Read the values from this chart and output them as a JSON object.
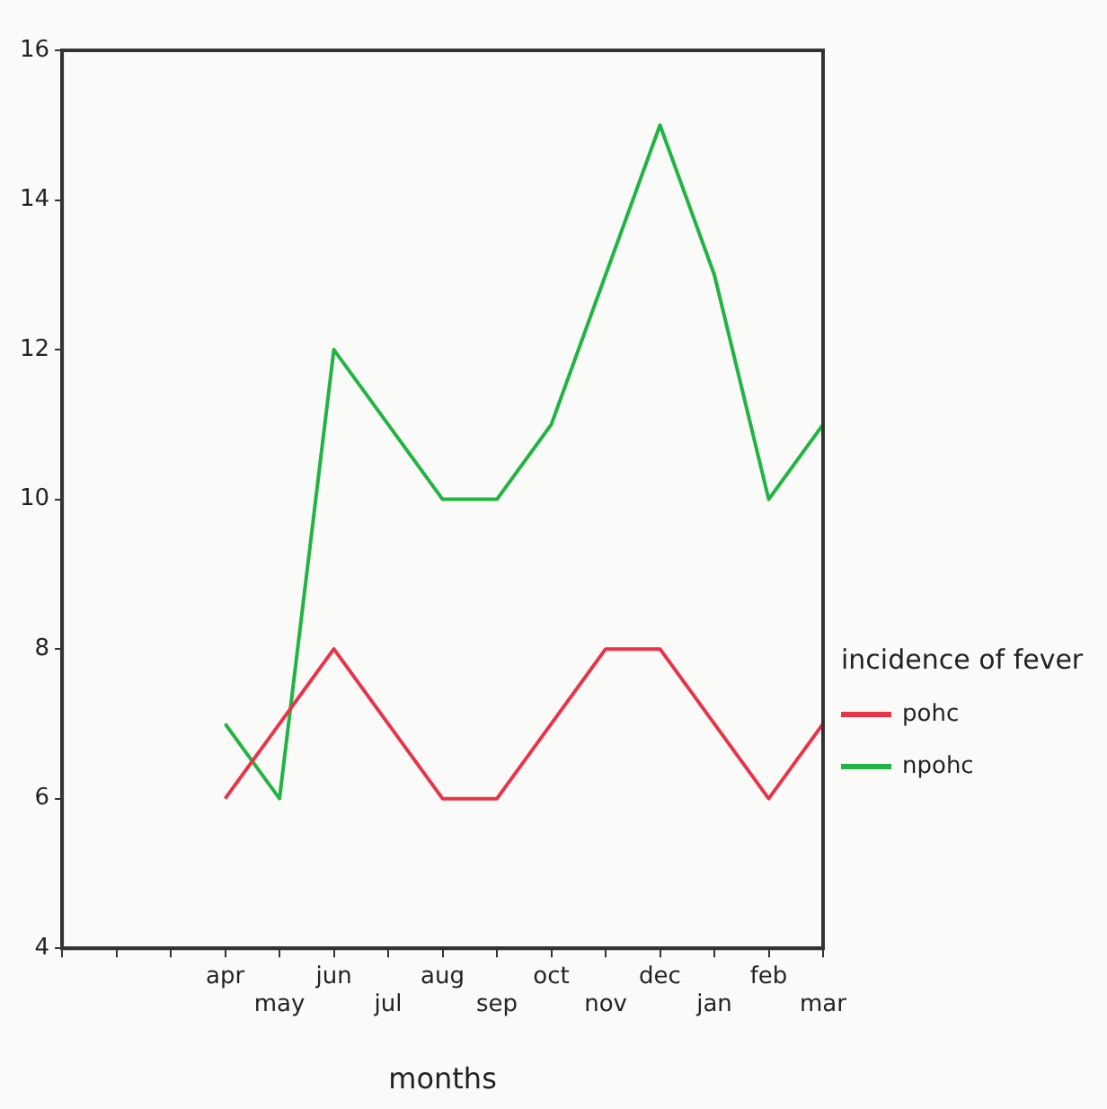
{
  "chart_data": {
    "type": "line",
    "xlabel": "months",
    "legend_title": "incidence of fever",
    "categories": [
      null,
      null,
      null,
      "apr",
      "may",
      "jun",
      "jul",
      "aug",
      "sep",
      "oct",
      "nov",
      "dec",
      "jan",
      "feb",
      "mar"
    ],
    "series": [
      {
        "name": "pohc",
        "color": "#e8344a",
        "values": [
          null,
          null,
          null,
          6,
          7,
          8,
          7,
          6,
          6,
          7,
          8,
          8,
          7,
          6,
          7
        ]
      },
      {
        "name": "npohc",
        "color": "#22b443",
        "values": [
          null,
          null,
          null,
          7,
          6,
          12,
          11,
          10,
          10,
          11,
          13,
          15,
          13,
          10,
          11
        ]
      }
    ],
    "ylim": [
      4,
      16
    ],
    "yticks": [
      4,
      6,
      8,
      10,
      12,
      14,
      16
    ],
    "grid": false,
    "legend": "right",
    "marker": "none",
    "line_style": "solid"
  }
}
